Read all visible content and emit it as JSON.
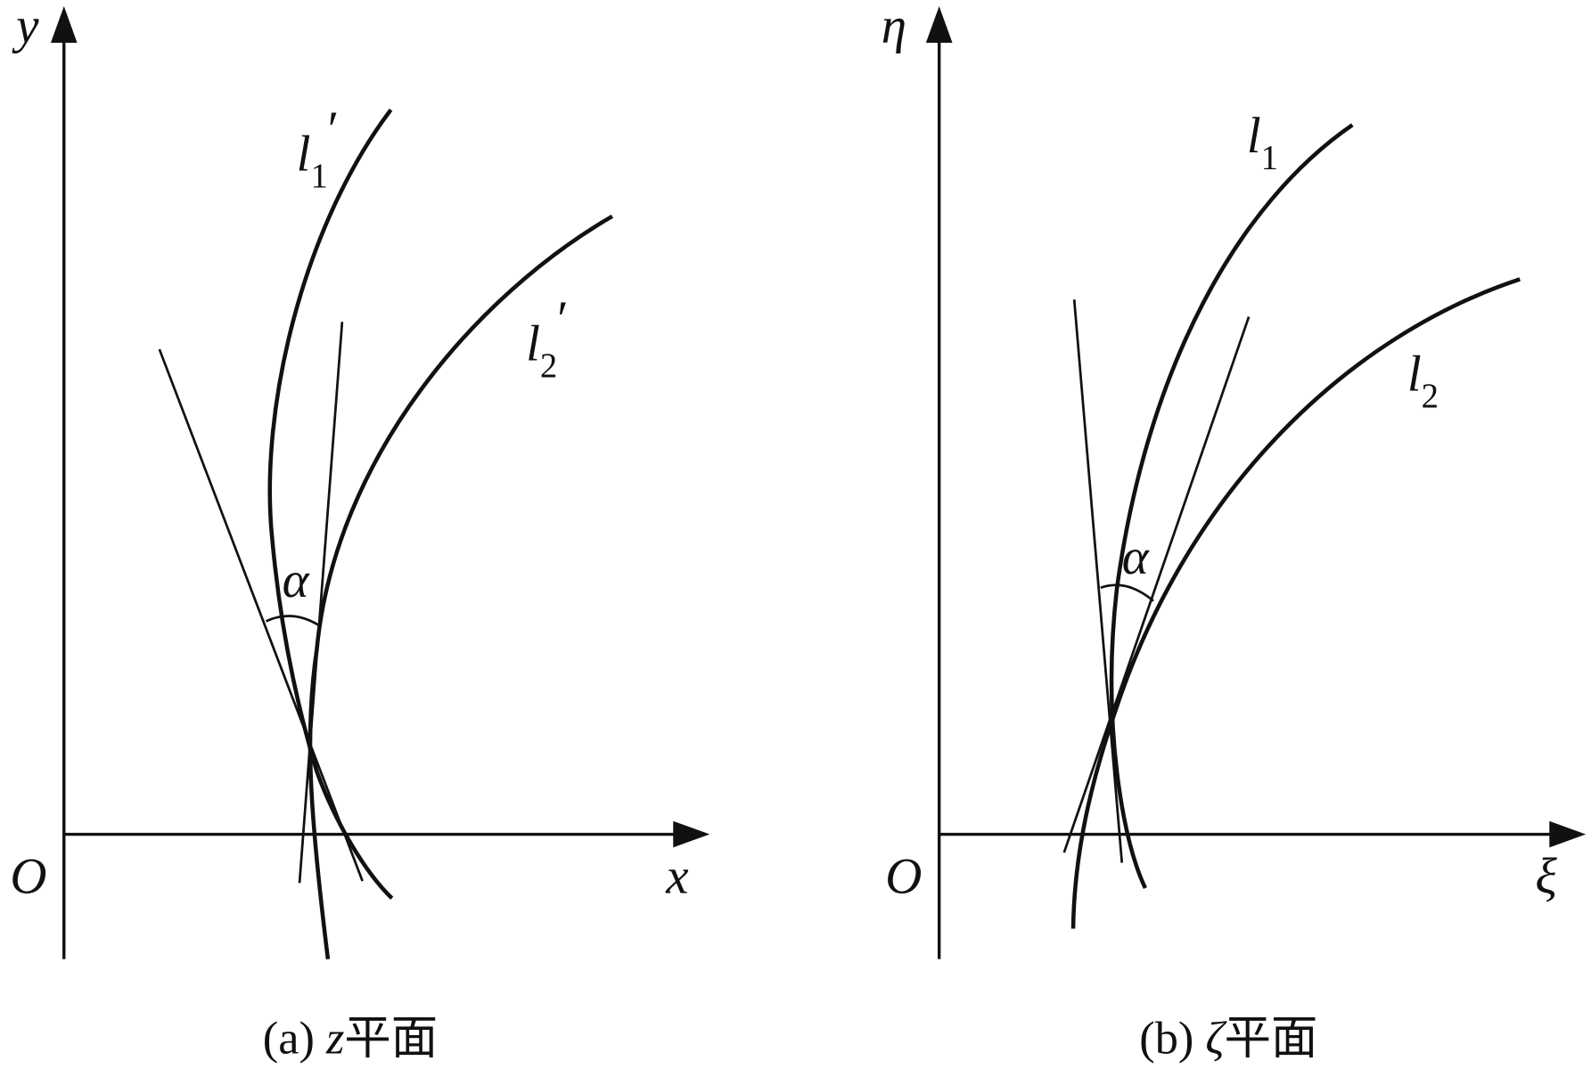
{
  "panel_a": {
    "y_label": "y",
    "x_label": "x",
    "origin": "O",
    "alpha": "α",
    "curve_1": {
      "letter": "l",
      "subscript": "1",
      "prime": "′"
    },
    "curve_2": {
      "letter": "l",
      "subscript": "2",
      "prime": "′"
    },
    "caption": {
      "tag": "(a)",
      "var": "z",
      "text": "平面"
    }
  },
  "panel_b": {
    "y_label": "η",
    "x_label": "ξ",
    "origin": "O",
    "alpha": "α",
    "curve_1": {
      "letter": "l",
      "subscript": "1"
    },
    "curve_2": {
      "letter": "l",
      "subscript": "2"
    },
    "caption": {
      "tag": "(b)",
      "var": "ζ",
      "text": "平面"
    }
  }
}
